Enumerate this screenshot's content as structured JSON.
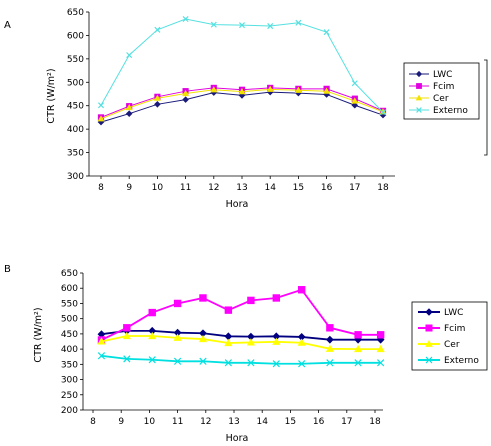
{
  "chart_data": [
    {
      "panel_label": "A",
      "type": "line",
      "xlabel": "Hora",
      "ylabel": "CTR (W/m²)",
      "ylim": [
        300,
        650
      ],
      "yticks": [
        300,
        350,
        400,
        450,
        500,
        550,
        600,
        650
      ],
      "x": [
        8,
        9,
        10,
        11,
        12,
        13,
        14,
        15,
        16,
        17,
        18
      ],
      "series": [
        {
          "name": "LWC",
          "color": "#1a1a7a",
          "marker": "diamond",
          "values": [
            415,
            433,
            453,
            463,
            478,
            472,
            479,
            477,
            474,
            451,
            430
          ]
        },
        {
          "name": "Fcim",
          "color": "#e000e0",
          "marker": "square",
          "values": [
            425,
            449,
            469,
            481,
            488,
            484,
            488,
            486,
            486,
            465,
            439
          ]
        },
        {
          "name": "Cer",
          "color": "#f2e200",
          "marker": "triangle",
          "values": [
            422,
            446,
            466,
            476,
            484,
            480,
            485,
            483,
            481,
            460,
            437
          ]
        },
        {
          "name": "Externo",
          "color": "#55e0e0",
          "marker": "cross",
          "values": [
            451,
            558,
            612,
            635,
            623,
            622,
            620,
            627,
            607,
            498,
            436
          ]
        }
      ]
    },
    {
      "panel_label": "B",
      "type": "line",
      "xlabel": "Hora",
      "ylabel": "CTR (W/m²)",
      "ylim": [
        200,
        650
      ],
      "yticks": [
        200,
        250,
        300,
        350,
        400,
        450,
        500,
        550,
        600,
        650
      ],
      "xlim": [
        8,
        18.5
      ],
      "xticks": [
        8,
        9,
        10,
        11,
        12,
        13,
        14,
        15,
        16,
        17,
        18
      ],
      "series": [
        {
          "name": "LWC",
          "color": "#000080",
          "marker": "diamond",
          "x": [
            8.3,
            9.2,
            10.1,
            11.0,
            11.9,
            12.8,
            13.6,
            14.5,
            15.4,
            16.4,
            17.4,
            18.2
          ],
          "values": [
            449,
            460,
            460,
            454,
            452,
            442,
            441,
            442,
            440,
            431,
            431,
            431
          ]
        },
        {
          "name": "Fcim",
          "color": "#ff00ff",
          "marker": "square",
          "x": [
            8.3,
            9.2,
            10.1,
            11.0,
            11.9,
            12.8,
            13.6,
            14.5,
            15.4,
            16.4,
            17.4,
            18.2
          ],
          "values": [
            430,
            470,
            520,
            550,
            568,
            528,
            560,
            568,
            595,
            470,
            447,
            447
          ]
        },
        {
          "name": "Cer",
          "color": "#ffff00",
          "marker": "triangle",
          "x": [
            8.3,
            9.2,
            10.1,
            11.0,
            11.9,
            12.8,
            13.6,
            14.5,
            15.4,
            16.4,
            17.4,
            18.2
          ],
          "values": [
            425,
            443,
            443,
            437,
            433,
            420,
            422,
            424,
            421,
            401,
            400,
            400
          ]
        },
        {
          "name": "Externo",
          "color": "#00e0e0",
          "marker": "cross",
          "x": [
            8.3,
            9.2,
            10.1,
            11.0,
            11.9,
            12.8,
            13.6,
            14.5,
            15.4,
            16.4,
            17.4,
            18.2
          ],
          "values": [
            378,
            368,
            365,
            360,
            360,
            355,
            355,
            352,
            352,
            355,
            355,
            355
          ]
        }
      ]
    }
  ]
}
